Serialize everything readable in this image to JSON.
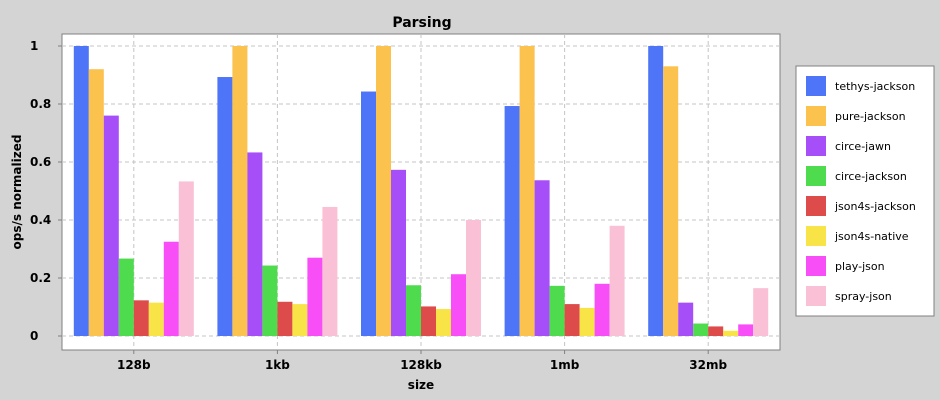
{
  "chart_data": {
    "type": "bar",
    "title": "Parsing",
    "xlabel": "size",
    "ylabel": "ops/s normalized",
    "categories": [
      "128b",
      "1kb",
      "128kb",
      "1mb",
      "32mb"
    ],
    "ylim": [
      0,
      1.05
    ],
    "yticks": [
      "0",
      "0.2",
      "0.4",
      "0.6",
      "0.8",
      "1"
    ],
    "grid": true,
    "legend_position": "right",
    "series": [
      {
        "name": "tethys-jackson",
        "color": "#4e74f7",
        "values": [
          1.0,
          0.893,
          0.843,
          0.793,
          1.0
        ]
      },
      {
        "name": "pure-jackson",
        "color": "#fbc24e",
        "values": [
          0.92,
          1.0,
          1.0,
          1.0,
          0.93
        ]
      },
      {
        "name": "circe-jawn",
        "color": "#a64ef7",
        "values": [
          0.76,
          0.633,
          0.573,
          0.537,
          0.115
        ]
      },
      {
        "name": "circe-jackson",
        "color": "#4fdb4e",
        "values": [
          0.267,
          0.243,
          0.175,
          0.173,
          0.043
        ]
      },
      {
        "name": "json4s-jackson",
        "color": "#dd4b4b",
        "values": [
          0.123,
          0.118,
          0.102,
          0.11,
          0.033
        ]
      },
      {
        "name": "json4s-native",
        "color": "#f8e446",
        "values": [
          0.115,
          0.11,
          0.093,
          0.097,
          0.018
        ]
      },
      {
        "name": "play-json",
        "color": "#f74ef7",
        "values": [
          0.325,
          0.27,
          0.213,
          0.18,
          0.04
        ]
      },
      {
        "name": "spray-json",
        "color": "#fac0d6",
        "values": [
          0.533,
          0.445,
          0.4,
          0.38,
          0.165
        ]
      }
    ]
  }
}
